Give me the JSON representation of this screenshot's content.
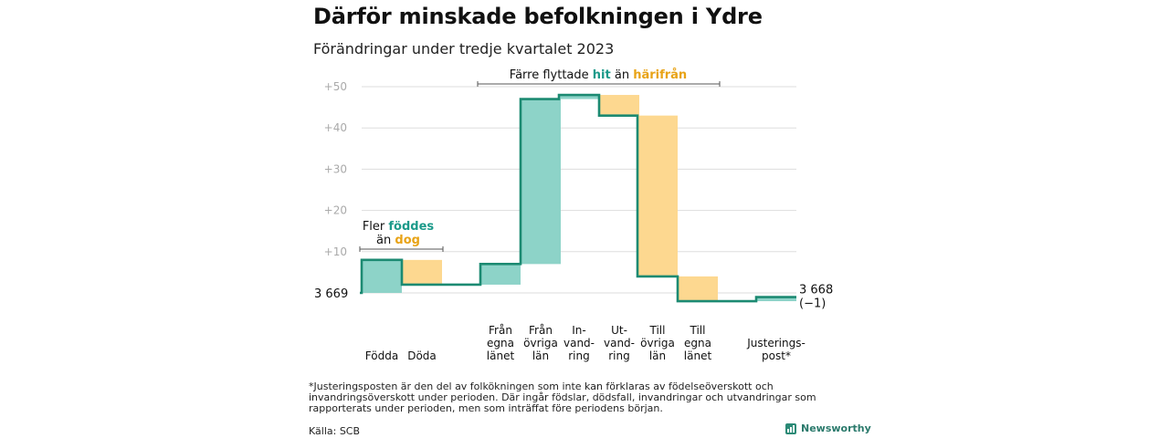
{
  "title": "Därför minskade befolkningen i Ydre",
  "subtitle": "Förändringar under tredje kvartalet 2023",
  "footnote": "*Justeringsposten är den del av folkökningen som inte kan förklaras av födelseöverskott och invandringsöverskott under perioden. Där ingår födslar, dödsfall, invandringar och utvandringar som rapporterats under perioden, men som inträffat före periodens början.",
  "source": "Källa: SCB",
  "brand": "Newsworthy",
  "colors": {
    "positive": "#8dd3c8",
    "negative": "#fdd890",
    "line": "#1c8a72",
    "hit": "#1c9a8a",
    "harifran": "#e8a316",
    "grid": "#dddddd",
    "tick": "#aaaaaa"
  },
  "chart_data": {
    "type": "waterfall",
    "baseline": 3669,
    "start_label": "3 669",
    "end_label": "3 668",
    "end_change_label": "(−1)",
    "ylim": [
      -4,
      50
    ],
    "yticks": [
      "+10",
      "+20",
      "+30",
      "+40",
      "+50"
    ],
    "ytick_values": [
      10,
      20,
      30,
      40,
      50
    ],
    "steps": [
      {
        "label": [
          "Födda"
        ],
        "value": 8
      },
      {
        "label": [
          "Döda"
        ],
        "value": -6
      },
      {
        "label": [
          "Från",
          "egna",
          "länet"
        ],
        "value": 5
      },
      {
        "label": [
          "Från",
          "övriga",
          "län"
        ],
        "value": 40
      },
      {
        "label": [
          "In-",
          "vand-",
          "ring"
        ],
        "value": 1
      },
      {
        "label": [
          "Ut-",
          "vand-",
          "ring"
        ],
        "value": -5
      },
      {
        "label": [
          "Till",
          "övriga",
          "län"
        ],
        "value": -39
      },
      {
        "label": [
          "Till",
          "egna",
          "länet"
        ],
        "value": -6
      },
      {
        "label": [
          "Justerings-",
          "post*"
        ],
        "value": 1
      }
    ],
    "annotations": {
      "births": {
        "line1": "Fler ",
        "hl1": "föddes",
        "line2": "än ",
        "hl2": "dog"
      },
      "migration": {
        "prefix": "Färre flyttade ",
        "hl1": "hit",
        "mid": " än ",
        "hl2": "härifrån"
      }
    }
  }
}
